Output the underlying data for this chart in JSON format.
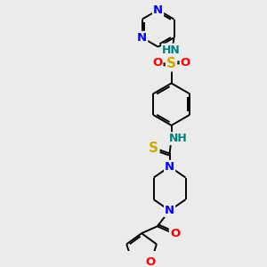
{
  "bg_color": "#ebebeb",
  "atom_colors": {
    "C": "#000000",
    "N": "#0000ff",
    "O": "#ff0000",
    "S": "#ccaa00",
    "H": "#008080"
  },
  "bond_color": "#000000",
  "figure_size": [
    3.0,
    3.0
  ],
  "dpi": 100,
  "lw": 1.4,
  "fs": 9.5,
  "xlim": [
    40,
    260
  ],
  "ylim": [
    10,
    295
  ]
}
